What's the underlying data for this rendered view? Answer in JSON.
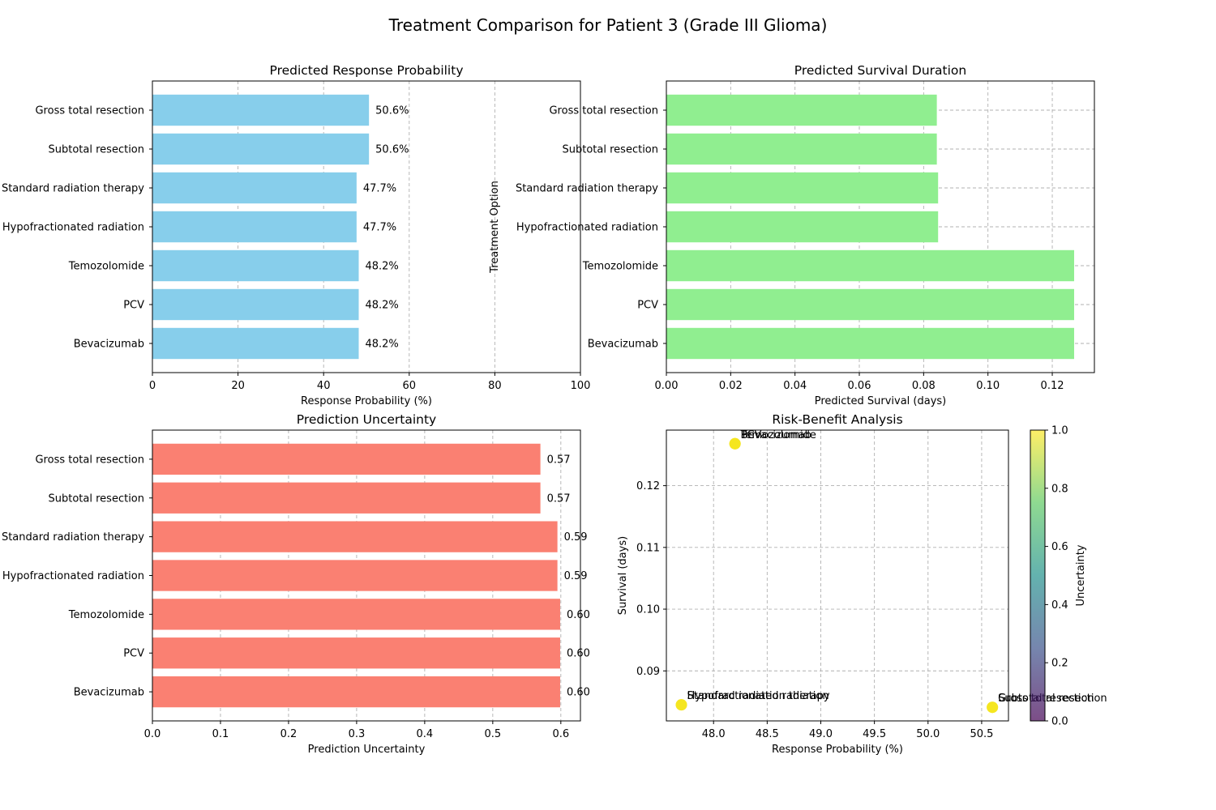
{
  "figure": {
    "title": "Treatment Comparison for Patient 3 (Grade III Glioma)"
  },
  "chart_data": [
    {
      "id": "response",
      "type": "bar",
      "orientation": "horizontal",
      "title": "Predicted Response Probability",
      "xlabel": "Response Probability (%)",
      "ylabel": "Treatment Option",
      "categories": [
        "Gross total resection",
        "Subtotal resection",
        "Standard radiation therapy",
        "Hypofractionated radiation",
        "Temozolomide",
        "PCV",
        "Bevacizumab"
      ],
      "values": [
        50.6,
        50.6,
        47.7,
        47.7,
        48.2,
        48.2,
        48.2
      ],
      "value_labels": [
        "50.6%",
        "50.6%",
        "47.7%",
        "47.7%",
        "48.2%",
        "48.2%",
        "48.2%"
      ],
      "xlim": [
        0,
        100
      ],
      "xticks": [
        0,
        20,
        40,
        60,
        80,
        100
      ],
      "xtick_labels": [
        "0",
        "20",
        "40",
        "60",
        "80",
        "100"
      ],
      "color": "#87ceeb",
      "grid": "x"
    },
    {
      "id": "survival",
      "type": "bar",
      "orientation": "horizontal",
      "title": "Predicted Survival Duration",
      "xlabel": "Predicted Survival (days)",
      "categories": [
        "Gross total resection",
        "Subtotal resection",
        "Standard radiation therapy",
        "Hypofractionated radiation",
        "Temozolomide",
        "PCV",
        "Bevacizumab"
      ],
      "values": [
        0.0841,
        0.0841,
        0.0845,
        0.0845,
        0.1268,
        0.1268,
        0.1268
      ],
      "xlim": [
        0,
        0.1331
      ],
      "xticks": [
        0,
        0.02,
        0.04,
        0.06,
        0.08,
        0.1,
        0.12
      ],
      "xtick_labels": [
        "0.00",
        "0.02",
        "0.04",
        "0.06",
        "0.08",
        "0.10",
        "0.12"
      ],
      "color": "#90ee90",
      "grid": "both"
    },
    {
      "id": "uncertainty",
      "type": "bar",
      "orientation": "horizontal",
      "title": "Prediction Uncertainty",
      "xlabel": "Prediction Uncertainty",
      "categories": [
        "Gross total resection",
        "Subtotal resection",
        "Standard radiation therapy",
        "Hypofractionated radiation",
        "Temozolomide",
        "PCV",
        "Bevacizumab"
      ],
      "values": [
        0.57,
        0.57,
        0.595,
        0.595,
        0.599,
        0.599,
        0.599
      ],
      "value_labels": [
        "0.57",
        "0.57",
        "0.59",
        "0.59",
        "0.60",
        "0.60",
        "0.60"
      ],
      "xlim": [
        0,
        0.6288
      ],
      "xticks": [
        0,
        0.1,
        0.2,
        0.3,
        0.4,
        0.5,
        0.6
      ],
      "xtick_labels": [
        "0.0",
        "0.1",
        "0.2",
        "0.3",
        "0.4",
        "0.5",
        "0.6"
      ],
      "color": "#fa8072",
      "grid": "x"
    },
    {
      "id": "risk-benefit",
      "type": "scatter",
      "title": "Risk-Benefit Analysis",
      "xlabel": "Response Probability (%)",
      "ylabel": "Survival (days)",
      "points": [
        {
          "label": "Gross total resection",
          "x": 50.6,
          "y": 0.0841,
          "uncertainty": 0.57
        },
        {
          "label": "Subtotal resection",
          "x": 50.6,
          "y": 0.0841,
          "uncertainty": 0.57
        },
        {
          "label": "Standard radiation therapy",
          "x": 47.7,
          "y": 0.0845,
          "uncertainty": 0.595
        },
        {
          "label": "Hypofractionated radiation",
          "x": 47.7,
          "y": 0.0845,
          "uncertainty": 0.595
        },
        {
          "label": "Temozolomide",
          "x": 48.2,
          "y": 0.1268,
          "uncertainty": 0.599
        },
        {
          "label": "PCV",
          "x": 48.2,
          "y": 0.1268,
          "uncertainty": 0.599
        },
        {
          "label": "Bevacizumab",
          "x": 48.2,
          "y": 0.1268,
          "uncertainty": 0.599
        }
      ],
      "xlim": [
        47.56,
        50.75
      ],
      "ylim": [
        0.0819,
        0.129
      ],
      "xticks": [
        48.0,
        48.5,
        49.0,
        49.5,
        50.0,
        50.5
      ],
      "xtick_labels": [
        "48.0",
        "48.5",
        "49.0",
        "49.5",
        "50.0",
        "50.5"
      ],
      "yticks": [
        0.09,
        0.1,
        0.11,
        0.12
      ],
      "ytick_labels": [
        "0.09",
        "0.10",
        "0.11",
        "0.12"
      ],
      "grid": "both",
      "point_color": "#f5e61e",
      "colorbar": {
        "label": "Uncertainty",
        "range": [
          0,
          1
        ],
        "ticks": [
          0,
          0.2,
          0.4,
          0.6,
          0.8,
          1.0
        ],
        "tick_labels": [
          "0.0",
          "0.2",
          "0.4",
          "0.6",
          "0.8",
          "1.0"
        ],
        "colormap": "viridis",
        "stops": [
          "#440154",
          "#3b528b",
          "#21918c",
          "#5ec962",
          "#fde725"
        ]
      }
    }
  ]
}
